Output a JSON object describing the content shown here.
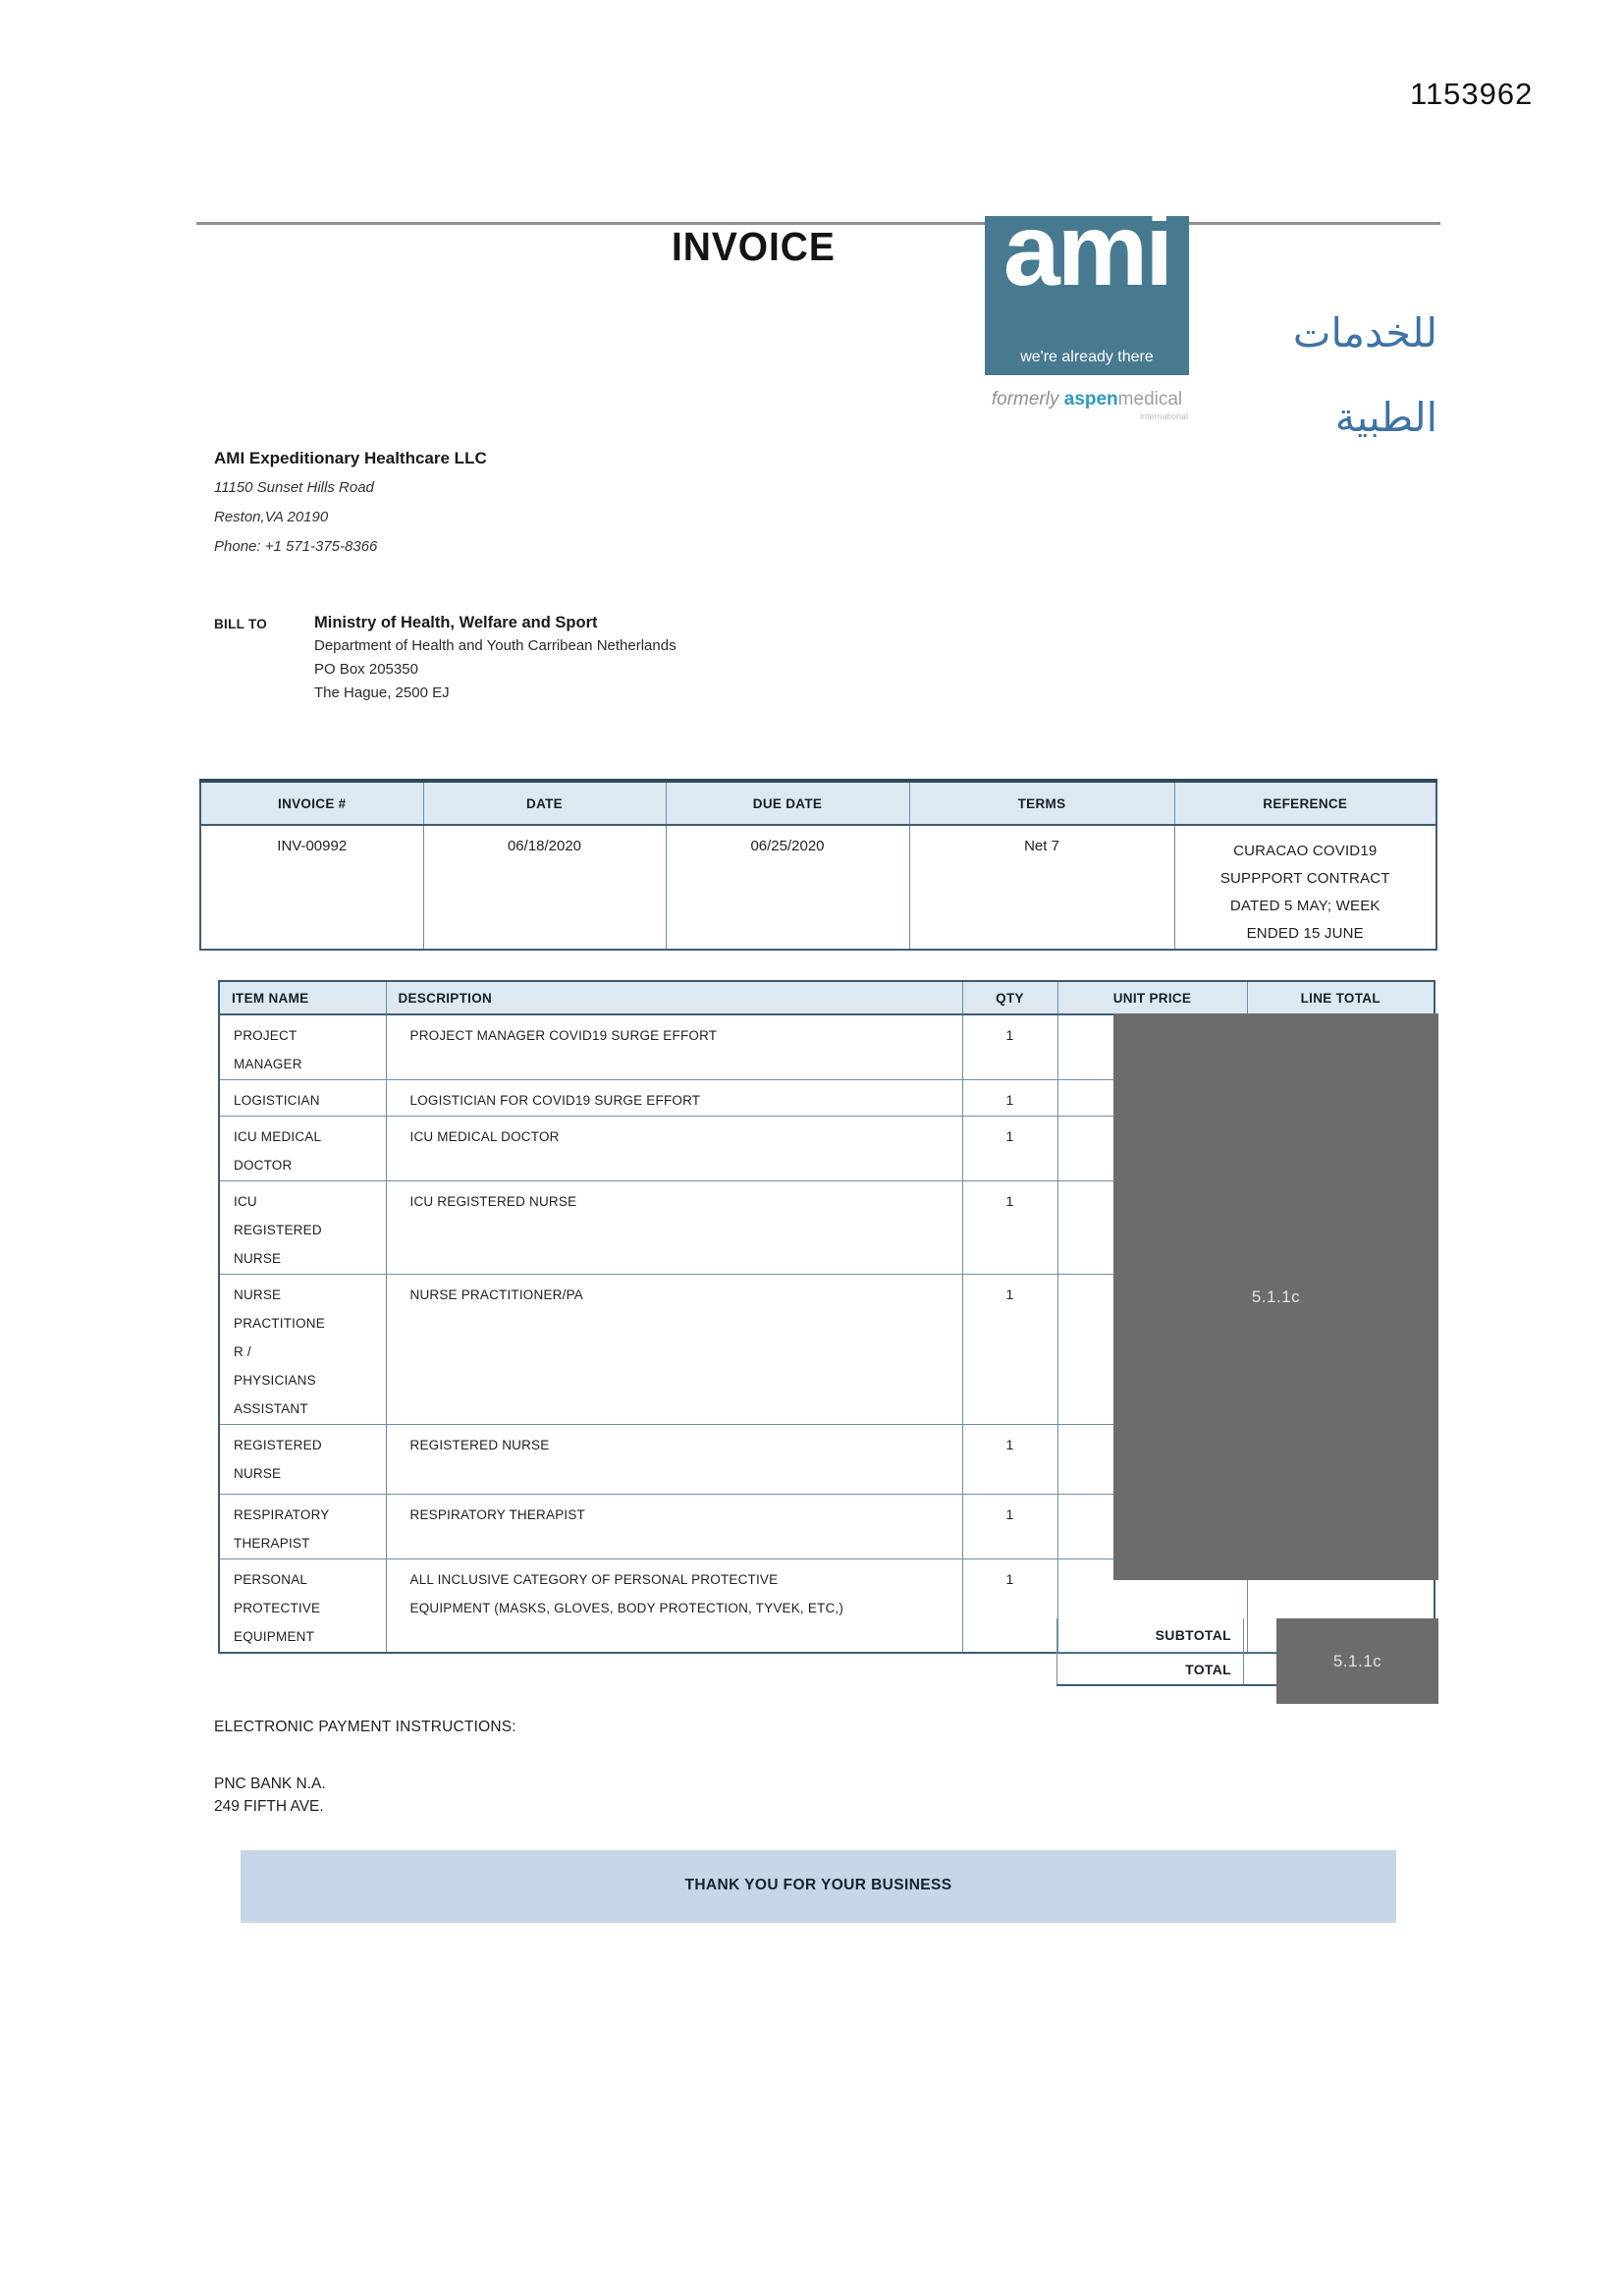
{
  "page": {
    "doc_number": "1153962"
  },
  "header": {
    "title": "INVOICE",
    "logo": {
      "main": "ami",
      "tagline": "we're already there",
      "arabic": "للخدمات الطبية",
      "formerly_prefix": "formerly",
      "formerly_brand": "aspen",
      "formerly_suffix": "medical",
      "formerly_sub": "international"
    }
  },
  "company": {
    "name": "AMI Expeditionary Healthcare LLC",
    "address1": "11150 Sunset Hills Road",
    "address2": "Reston,VA 20190",
    "phone": "Phone: +1 571-375-8366"
  },
  "bill_to": {
    "label": "BILL TO",
    "name": "Ministry of Health, Welfare and Sport",
    "line1": "Department of Health and Youth Carribean Netherlands",
    "line2": "PO Box 205350",
    "line3": "The Hague,  2500 EJ"
  },
  "meta_table": {
    "headers": [
      "INVOICE #",
      "DATE",
      "DUE DATE",
      "TERMS",
      "REFERENCE"
    ],
    "row": {
      "invoice_no": "INV-00992",
      "date": "06/18/2020",
      "due_date": "06/25/2020",
      "terms": "Net 7",
      "reference_lines": [
        "CURACAO COVID19",
        "SUPPPORT CONTRACT",
        "DATED 5 MAY; WEEK",
        "ENDED 15 JUNE"
      ]
    }
  },
  "items_table": {
    "headers": [
      "ITEM NAME",
      "DESCRIPTION",
      "QTY",
      "UNIT PRICE",
      "LINE TOTAL"
    ],
    "rows": [
      {
        "item_lines": [
          "PROJECT",
          "MANAGER"
        ],
        "description_lines": [
          "PROJECT MANAGER COVID19 SURGE EFFORT"
        ],
        "qty": "1"
      },
      {
        "item_lines": [
          "LOGISTICIAN"
        ],
        "description_lines": [
          "LOGISTICIAN FOR COVID19 SURGE EFFORT"
        ],
        "qty": "1"
      },
      {
        "item_lines": [
          "ICU MEDICAL",
          "DOCTOR"
        ],
        "description_lines": [
          "ICU MEDICAL DOCTOR"
        ],
        "qty": "1"
      },
      {
        "item_lines": [
          "ICU",
          "REGISTERED",
          "NURSE"
        ],
        "description_lines": [
          "ICU REGISTERED NURSE"
        ],
        "qty": "1"
      },
      {
        "item_lines": [
          "NURSE",
          "PRACTITIONE",
          "R /",
          "PHYSICIANS",
          "ASSISTANT"
        ],
        "description_lines": [
          "NURSE PRACTITIONER/PA"
        ],
        "qty": "1"
      },
      {
        "item_lines": [
          "REGISTERED",
          "NURSE"
        ],
        "description_lines": [
          "REGISTERED NURSE"
        ],
        "qty": "1"
      },
      {
        "item_lines": [
          "RESPIRATORY",
          "THERAPIST"
        ],
        "description_lines": [
          "RESPIRATORY THERAPIST"
        ],
        "qty": "1"
      },
      {
        "item_lines": [
          "PERSONAL",
          "PROTECTIVE",
          "EQUIPMENT"
        ],
        "description_lines": [
          "ALL INCLUSIVE CATEGORY OF PERSONAL PROTECTIVE",
          "EQUIPMENT (MASKS, GLOVES, BODY PROTECTION, TYVEK, ETC,)"
        ],
        "qty": "1"
      }
    ],
    "summary": {
      "subtotal_label": "SUBTOTAL",
      "total_label": "TOTAL"
    },
    "redaction_label": "5.1.1c"
  },
  "footer": {
    "payment_heading": "ELECTRONIC PAYMENT INSTRUCTIONS:",
    "bank_line1": "PNC BANK N.A.",
    "bank_line2": "249 FIFTH AVE.",
    "thanks": "THANK YOU FOR YOUR BUSINESS"
  },
  "colors": {
    "logo_box": "#477a90",
    "aspen_teal": "#2c9abd",
    "arabic_blue": "#3e73a5",
    "table_header_fill": "#dee8f1",
    "border_heavy": "#3d5c74",
    "redaction_grey": "#6c6c6c",
    "banner_fill": "#c7d7e8"
  }
}
